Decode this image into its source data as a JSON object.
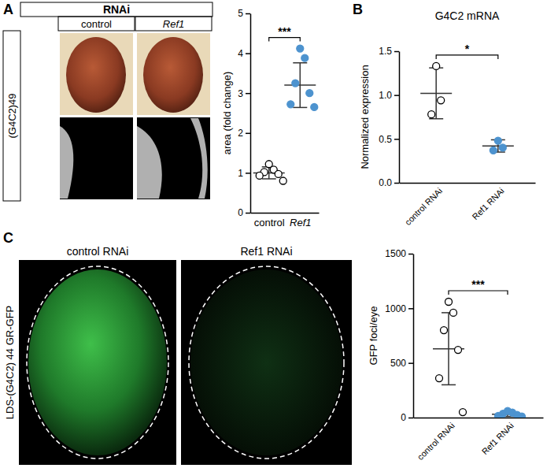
{
  "figure": {
    "panels": [
      "A",
      "B",
      "C"
    ],
    "panel_a_images": {
      "header": "RNAi",
      "columns": [
        "control",
        "Ref1"
      ],
      "row_label": "(G4C2)49"
    },
    "panel_c_images": {
      "columns": [
        "control RNAi",
        "Ref1 RNAi"
      ],
      "row_label": "LDS-(G4C2) 44 GR-GFP"
    }
  },
  "chart_data": [
    {
      "type": "scatter",
      "y_label": "area (fold change)",
      "categories": [
        "control",
        "Ref1"
      ],
      "groups": [
        {
          "values": [
            1.22,
            1.08,
            1.02,
            0.97,
            0.93,
            0.8
          ],
          "mean": 1.0,
          "error": 0.15,
          "color": "#000000",
          "marker": "open"
        },
        {
          "values": [
            4.12,
            3.88,
            3.25,
            3.0,
            2.72,
            2.65
          ],
          "mean": 3.2,
          "error": 0.56,
          "color": "#4d93cf",
          "marker": "filled"
        }
      ],
      "ylim": [
        0,
        5
      ],
      "yticks": [
        0,
        1,
        2,
        3,
        4,
        5
      ],
      "annotations": [
        "***"
      ]
    },
    {
      "type": "scatter",
      "title": "G4C2 mRNA",
      "y_label": "Normalized expression",
      "categories": [
        "control RNAi",
        "Ref1 RNAi"
      ],
      "groups": [
        {
          "values": [
            1.33,
            0.94,
            0.78
          ],
          "mean": 1.02,
          "error": 0.29,
          "color": "#000000",
          "marker": "open"
        },
        {
          "values": [
            0.48,
            0.4,
            0.37
          ],
          "mean": 0.42,
          "error": 0.07,
          "color": "#4d93cf",
          "marker": "filled"
        }
      ],
      "ylim": [
        0,
        1.5
      ],
      "yticks": [
        {
          "value": 0,
          "label": "0.0"
        },
        0.5,
        {
          "value": 1,
          "label": "1.0"
        },
        1.5
      ],
      "annotations": [
        "*"
      ]
    },
    {
      "type": "scatter",
      "y_label": "GFP foci/eye",
      "categories": [
        "control RNAi",
        "Ref1 RNAi"
      ],
      "groups": [
        {
          "values": [
            1060,
            960,
            800,
            620,
            360,
            50
          ],
          "mean": 630,
          "error": 330,
          "color": "#000000",
          "marker": "open"
        },
        {
          "values": [
            60,
            45,
            35,
            25,
            15,
            10
          ],
          "mean": 30,
          "error": 20,
          "color": "#4d93cf",
          "marker": "filled"
        }
      ],
      "ylim": [
        0,
        1500
      ],
      "yticks": [
        0,
        500,
        1000,
        1500
      ],
      "annotations": [
        "***"
      ]
    }
  ]
}
